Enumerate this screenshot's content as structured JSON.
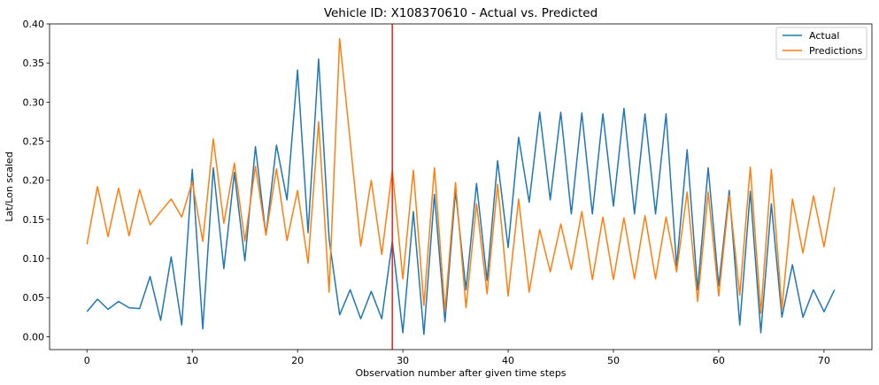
{
  "chart_data": {
    "type": "line",
    "title": "Vehicle ID: X108370610 - Actual vs. Predicted",
    "xlabel": "Observation number after given time steps",
    "ylabel": "Lat/Lon scaled",
    "xlim": [
      -3.55,
      74.55
    ],
    "ylim": [
      -0.0165,
      0.4
    ],
    "xticks": [
      0,
      10,
      20,
      30,
      40,
      50,
      60,
      70
    ],
    "yticks": [
      0.0,
      0.05,
      0.1,
      0.15,
      0.2,
      0.25,
      0.3,
      0.35,
      0.4
    ],
    "ytick_labels": [
      "0.00",
      "0.05",
      "0.10",
      "0.15",
      "0.20",
      "0.25",
      "0.30",
      "0.35",
      "0.40"
    ],
    "grid": false,
    "legend_position": "top-right",
    "vline": {
      "x": 29,
      "color": "#e8231a"
    },
    "series": [
      {
        "name": "Actual",
        "color": "#1f77b4",
        "x": [
          0,
          1,
          2,
          3,
          4,
          5,
          6,
          7,
          8,
          9,
          10,
          11,
          12,
          13,
          14,
          15,
          16,
          17,
          18,
          19,
          20,
          21,
          22,
          23,
          24,
          25,
          26,
          27,
          28,
          29,
          30,
          31,
          32,
          33,
          34,
          35,
          36,
          37,
          38,
          39,
          40,
          41,
          42,
          43,
          44,
          45,
          46,
          47,
          48,
          49,
          50,
          51,
          52,
          53,
          54,
          55,
          56,
          57,
          58,
          59,
          60,
          61,
          62,
          63,
          64,
          65,
          66,
          67,
          68,
          69,
          70,
          71
        ],
        "values": [
          0.032,
          0.048,
          0.035,
          0.045,
          0.037,
          0.036,
          0.077,
          0.021,
          0.102,
          0.015,
          0.214,
          0.01,
          0.216,
          0.087,
          0.21,
          0.097,
          0.243,
          0.13,
          0.245,
          0.175,
          0.341,
          0.133,
          0.355,
          0.125,
          0.028,
          0.06,
          0.023,
          0.058,
          0.023,
          0.122,
          0.005,
          0.16,
          0.003,
          0.182,
          0.019,
          0.186,
          0.06,
          0.196,
          0.072,
          0.225,
          0.114,
          0.255,
          0.172,
          0.287,
          0.175,
          0.287,
          0.157,
          0.286,
          0.157,
          0.285,
          0.167,
          0.292,
          0.157,
          0.285,
          0.157,
          0.285,
          0.09,
          0.239,
          0.06,
          0.216,
          0.065,
          0.187,
          0.015,
          0.186,
          0.005,
          0.17,
          0.025,
          0.092,
          0.025,
          0.06,
          0.032,
          0.06
        ]
      },
      {
        "name": "Predictions",
        "color": "#ff7f0e",
        "x": [
          0,
          1,
          2,
          3,
          4,
          5,
          6,
          7,
          8,
          9,
          10,
          11,
          12,
          13,
          14,
          15,
          16,
          17,
          18,
          19,
          20,
          21,
          22,
          23,
          24,
          25,
          26,
          27,
          28,
          29,
          30,
          31,
          32,
          33,
          34,
          35,
          36,
          37,
          38,
          39,
          40,
          41,
          42,
          43,
          44,
          45,
          46,
          47,
          48,
          49,
          50,
          51,
          52,
          53,
          54,
          55,
          56,
          57,
          58,
          59,
          60,
          61,
          62,
          63,
          64,
          65,
          66,
          67,
          68,
          69,
          70,
          71
        ],
        "values": [
          0.118,
          0.192,
          0.128,
          0.19,
          0.129,
          0.188,
          0.143,
          0.16,
          0.176,
          0.153,
          0.198,
          0.122,
          0.253,
          0.145,
          0.222,
          0.122,
          0.218,
          0.13,
          0.215,
          0.123,
          0.187,
          0.094,
          0.275,
          0.057,
          0.381,
          0.25,
          0.116,
          0.2,
          0.105,
          0.213,
          0.074,
          0.213,
          0.04,
          0.216,
          0.033,
          0.197,
          0.037,
          0.17,
          0.055,
          0.195,
          0.052,
          0.176,
          0.057,
          0.137,
          0.083,
          0.144,
          0.086,
          0.16,
          0.073,
          0.153,
          0.073,
          0.152,
          0.074,
          0.155,
          0.074,
          0.153,
          0.083,
          0.185,
          0.045,
          0.185,
          0.052,
          0.181,
          0.053,
          0.217,
          0.03,
          0.214,
          0.035,
          0.176,
          0.107,
          0.18,
          0.115,
          0.191
        ]
      }
    ]
  }
}
